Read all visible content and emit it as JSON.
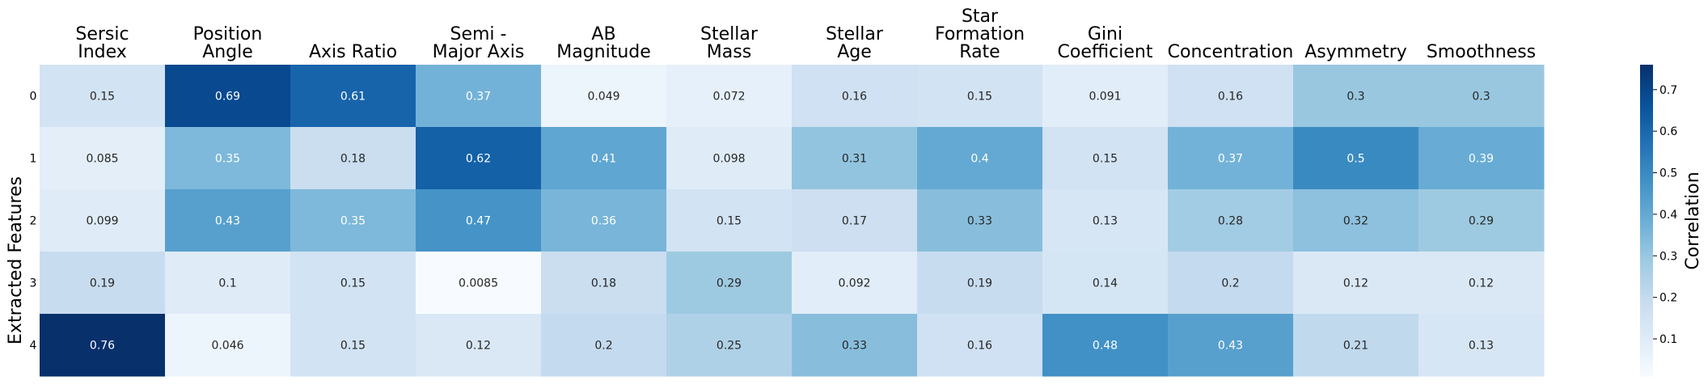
{
  "chart_data": {
    "type": "heatmap",
    "title": "",
    "xlabel": "",
    "ylabel": "Extracted Features",
    "colorbar_label": "Correlation",
    "colormap": "Blues",
    "vmin": 0.0085,
    "vmax": 0.76,
    "colorbar_ticks": [
      "0.1",
      "0.2",
      "0.3",
      "0.4",
      "0.5",
      "0.6",
      "0.7"
    ],
    "columns": [
      [
        "Sersic",
        "Index"
      ],
      [
        "Position",
        "Angle"
      ],
      [
        "Axis Ratio"
      ],
      [
        "Semi -",
        "Major Axis"
      ],
      [
        "AB",
        "Magnitude"
      ],
      [
        "Stellar",
        "Mass"
      ],
      [
        "Stellar",
        "Age"
      ],
      [
        "Star",
        "Formation",
        "Rate"
      ],
      [
        "Gini",
        "Coefficient"
      ],
      [
        "Concentration"
      ],
      [
        "Asymmetry"
      ],
      [
        "Smoothness"
      ]
    ],
    "rows": [
      "0",
      "1",
      "2",
      "3",
      "4"
    ],
    "values": [
      [
        0.15,
        0.69,
        0.61,
        0.37,
        0.049,
        0.072,
        0.16,
        0.15,
        0.091,
        0.16,
        0.3,
        0.3
      ],
      [
        0.085,
        0.35,
        0.18,
        0.62,
        0.41,
        0.098,
        0.31,
        0.4,
        0.15,
        0.37,
        0.5,
        0.39
      ],
      [
        0.099,
        0.43,
        0.35,
        0.47,
        0.36,
        0.15,
        0.17,
        0.33,
        0.13,
        0.28,
        0.32,
        0.29
      ],
      [
        0.19,
        0.1,
        0.15,
        0.0085,
        0.18,
        0.29,
        0.092,
        0.19,
        0.14,
        0.2,
        0.12,
        0.12
      ],
      [
        0.76,
        0.046,
        0.15,
        0.12,
        0.2,
        0.25,
        0.33,
        0.16,
        0.48,
        0.43,
        0.21,
        0.13
      ]
    ],
    "cell_labels": [
      [
        "0.15",
        "0.69",
        "0.61",
        "0.37",
        "0.049",
        "0.072",
        "0.16",
        "0.15",
        "0.091",
        "0.16",
        "0.3",
        "0.3"
      ],
      [
        "0.085",
        "0.35",
        "0.18",
        "0.62",
        "0.41",
        "0.098",
        "0.31",
        "0.4",
        "0.15",
        "0.37",
        "0.5",
        "0.39"
      ],
      [
        "0.099",
        "0.43",
        "0.35",
        "0.47",
        "0.36",
        "0.15",
        "0.17",
        "0.33",
        "0.13",
        "0.28",
        "0.32",
        "0.29"
      ],
      [
        "0.19",
        "0.1",
        "0.15",
        "0.0085",
        "0.18",
        "0.29",
        "0.092",
        "0.19",
        "0.14",
        "0.2",
        "0.12",
        "0.12"
      ],
      [
        "0.76",
        "0.046",
        "0.15",
        "0.12",
        "0.2",
        "0.25",
        "0.33",
        "0.16",
        "0.48",
        "0.43",
        "0.21",
        "0.13"
      ]
    ]
  }
}
